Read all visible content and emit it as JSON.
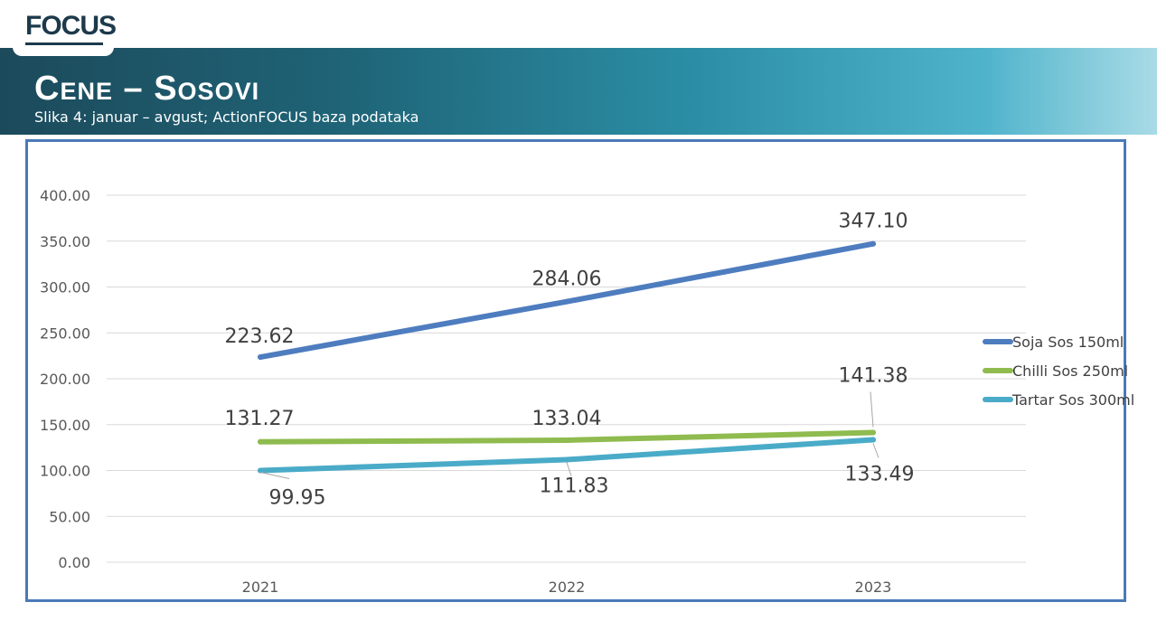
{
  "header": {
    "logo_text": "FOCUS",
    "title": "Cene – Sosovi",
    "subtitle": "Slika 4: januar – avgust; ActionFOCUS baza podataka"
  },
  "chart_data": {
    "type": "line",
    "categories": [
      "2021",
      "2022",
      "2023"
    ],
    "ylim": [
      0,
      400
    ],
    "y_ticks": [
      "0.00",
      "50.00",
      "100.00",
      "150.00",
      "200.00",
      "250.00",
      "300.00",
      "350.00",
      "400.00"
    ],
    "grid": true,
    "legend_position": "right",
    "series": [
      {
        "name": "Soja Sos 150ml",
        "color": "#4e7dbf",
        "values": [
          223.62,
          284.06,
          347.1
        ],
        "labels": [
          "223.62",
          "284.06",
          "347.10"
        ]
      },
      {
        "name": "Chilli Sos 250ml",
        "color": "#8fbb4f",
        "values": [
          131.27,
          133.04,
          141.38
        ],
        "labels": [
          "131.27",
          "133.04",
          "141.38"
        ]
      },
      {
        "name": "Tartar Sos 300ml",
        "color": "#4aabc8",
        "values": [
          99.95,
          111.83,
          133.49
        ],
        "labels": [
          "99.95",
          "111.83",
          "133.49"
        ]
      }
    ]
  }
}
